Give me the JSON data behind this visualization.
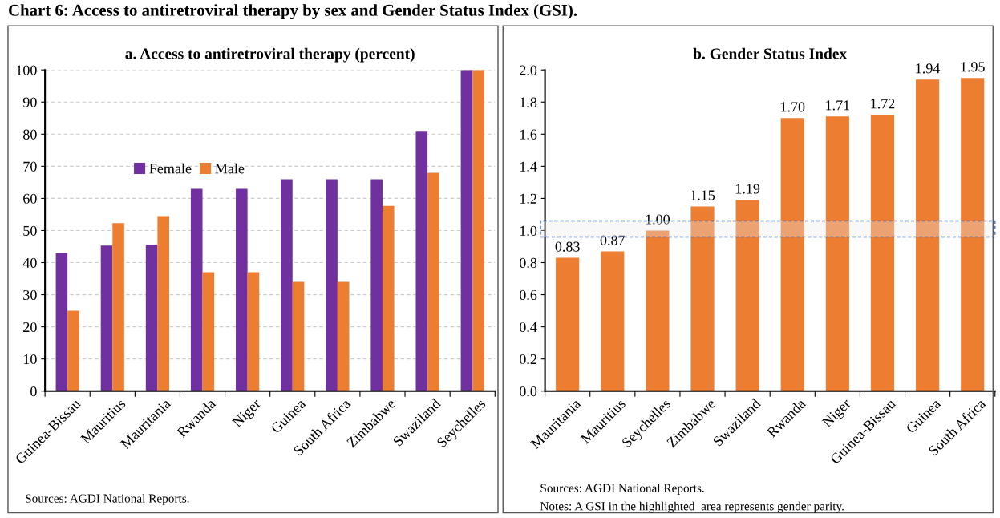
{
  "chart_data": [
    {
      "type": "bar",
      "title": "a. Access to antiretroviral therapy (percent)",
      "categories": [
        "Guinea-Bissau",
        "Mauritius",
        "Mauritania",
        "Rwanda",
        "Niger",
        "Guinea",
        "South Africa",
        "Zimbabwe",
        "Swaziland",
        "Seychelles"
      ],
      "series": [
        {
          "name": "Female",
          "color": "#7030a0",
          "values": [
            43,
            45.3,
            45.6,
            63,
            63,
            66,
            66,
            66,
            81,
            100
          ]
        },
        {
          "name": "Male",
          "color": "#ed7d31",
          "values": [
            25,
            52.3,
            54.5,
            37,
            37,
            34,
            34,
            57.7,
            68,
            100
          ]
        }
      ],
      "ylim": [
        0,
        100
      ],
      "yticks": [
        0,
        10,
        20,
        30,
        40,
        50,
        60,
        70,
        80,
        90,
        100
      ],
      "grid": "y",
      "legend": "top left",
      "annotations": [
        "Chart 6: Access to antiretroviral therapy by sex and Gender Status Index (GSI).",
        "Sources: AGDI National Reports."
      ]
    },
    {
      "type": "bar",
      "title": "b. Gender Status Index",
      "categories": [
        "Mauritania",
        "Mauritius",
        "Seychelles",
        "Zimbabwe",
        "Swaziland",
        "Rwanda",
        "Niger",
        "Guinea-Bissau",
        "Guinea",
        "South Africa"
      ],
      "values": [
        0.83,
        0.87,
        1.0,
        1.15,
        1.19,
        1.7,
        1.71,
        1.72,
        1.94,
        1.95
      ],
      "value_labels": [
        "0.83",
        "0.87",
        "1.00",
        "1.15",
        "1.19",
        "1.70",
        "1.71",
        "1.72",
        "1.94",
        "1.95"
      ],
      "color": "#ed7d31",
      "ylim": [
        0,
        2.0
      ],
      "yticks": [
        {
          "value": 0,
          "label": "0.0"
        },
        {
          "value": 0.2,
          "label": "0.2"
        },
        {
          "value": 0.4,
          "label": "0.4"
        },
        {
          "value": 0.6,
          "label": "0.6"
        },
        {
          "value": 0.8,
          "label": "0.8"
        },
        {
          "value": 1.0,
          "label": "1.0"
        },
        {
          "value": 1.2,
          "label": "1.2"
        },
        {
          "value": 1.4,
          "label": "1.4"
        },
        {
          "value": 1.6,
          "label": "1.6"
        },
        {
          "value": 1.8,
          "label": "1.8"
        },
        {
          "value": 2.0,
          "label": "2.0"
        }
      ],
      "bands": [
        {
          "axis": "y",
          "from": 0.96,
          "to": 1.06,
          "color": "#4472c4"
        }
      ],
      "annotations": [
        "Sources: AGDI National Reports.",
        "Notes: A GSI in the highlighted  area represents gender parity."
      ]
    }
  ]
}
